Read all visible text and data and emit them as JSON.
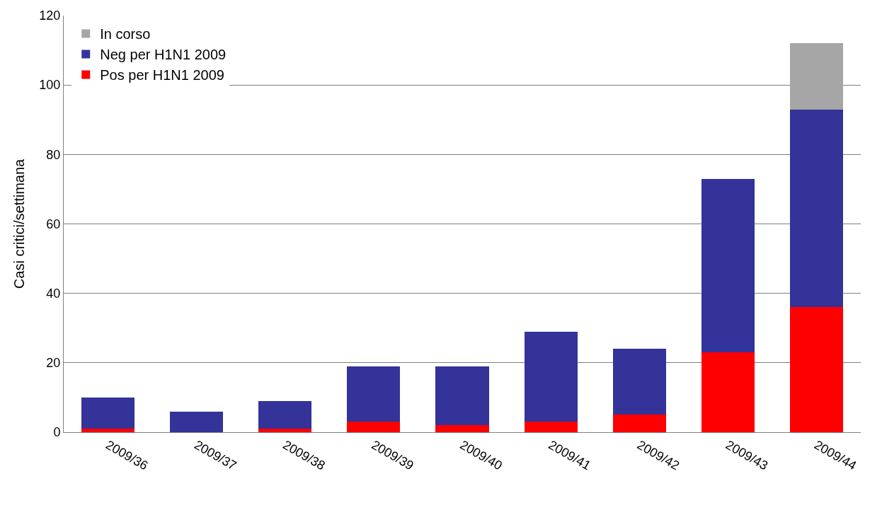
{
  "chart_data": {
    "type": "bar",
    "stacked": true,
    "ylabel": "Casi critici/settimana",
    "categories": [
      "2009/36",
      "2009/37",
      "2009/38",
      "2009/39",
      "2009/40",
      "2009/41",
      "2009/42",
      "2009/43",
      "2009/44"
    ],
    "series": [
      {
        "name": "Pos per H1N1 2009",
        "color": "#ff0000",
        "values": [
          1,
          0,
          1,
          3,
          2,
          3,
          5,
          23,
          36
        ]
      },
      {
        "name": "Neg per H1N1 2009",
        "color": "#333399",
        "values": [
          9,
          6,
          8,
          16,
          17,
          26,
          19,
          50,
          57
        ]
      },
      {
        "name": "In corso",
        "color": "#a6a6a6",
        "values": [
          0,
          0,
          0,
          0,
          0,
          0,
          0,
          0,
          19
        ]
      }
    ],
    "ylim": [
      0,
      120
    ],
    "yticks": [
      0,
      20,
      40,
      60,
      80,
      100,
      120
    ],
    "grid": "y",
    "legend": "top left"
  }
}
